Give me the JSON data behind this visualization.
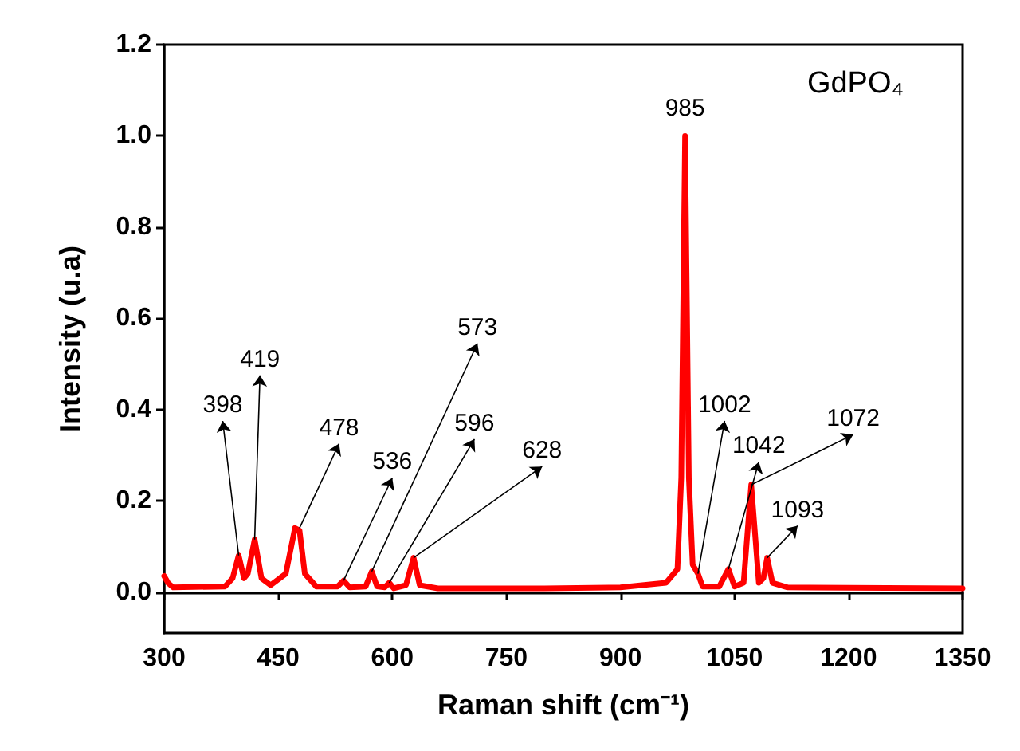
{
  "chart_data": {
    "type": "line",
    "title": "GdPO₄",
    "xlabel": "Raman shift (cm⁻¹)",
    "ylabel": "Intensity (u.a)",
    "x": [
      300,
      305,
      312,
      380,
      390,
      398,
      405,
      410,
      419,
      428,
      440,
      460,
      472,
      478,
      485,
      500,
      528,
      536,
      544,
      565,
      573,
      580,
      590,
      596,
      602,
      618,
      628,
      636,
      660,
      800,
      900,
      960,
      975,
      980,
      983,
      985,
      987,
      990,
      995,
      1002,
      1008,
      1030,
      1042,
      1050,
      1062,
      1068,
      1072,
      1076,
      1082,
      1088,
      1093,
      1100,
      1120,
      1350
    ],
    "series": [
      {
        "color": "#ff0000",
        "values": [
          0.035,
          0.02,
          0.01,
          0.012,
          0.03,
          0.08,
          0.03,
          0.04,
          0.115,
          0.03,
          0.015,
          0.04,
          0.14,
          0.135,
          0.04,
          0.012,
          0.012,
          0.025,
          0.01,
          0.012,
          0.045,
          0.012,
          0.01,
          0.02,
          0.008,
          0.015,
          0.075,
          0.015,
          0.008,
          0.008,
          0.01,
          0.02,
          0.05,
          0.25,
          0.7,
          1.0,
          0.7,
          0.25,
          0.06,
          0.04,
          0.012,
          0.012,
          0.05,
          0.012,
          0.02,
          0.15,
          0.235,
          0.15,
          0.02,
          0.03,
          0.075,
          0.02,
          0.01,
          0.008
        ]
      }
    ],
    "annotations": [
      {
        "text": "398",
        "x": 398,
        "y": 0.08
      },
      {
        "text": "419",
        "x": 419,
        "y": 0.115
      },
      {
        "text": "478",
        "x": 478,
        "y": 0.14
      },
      {
        "text": "536",
        "x": 536,
        "y": 0.025
      },
      {
        "text": "573",
        "x": 573,
        "y": 0.045
      },
      {
        "text": "596",
        "x": 596,
        "y": 0.02
      },
      {
        "text": "628",
        "x": 628,
        "y": 0.075
      },
      {
        "text": "985",
        "x": 985,
        "y": 1.0
      },
      {
        "text": "1002",
        "x": 1002,
        "y": 0.04
      },
      {
        "text": "1042",
        "x": 1042,
        "y": 0.05
      },
      {
        "text": "1072",
        "x": 1072,
        "y": 0.235
      },
      {
        "text": "1093",
        "x": 1093,
        "y": 0.075
      }
    ],
    "xlim": [
      300,
      1350
    ],
    "xticks": [
      300,
      450,
      600,
      750,
      900,
      1050,
      1200,
      1350
    ],
    "ylim": [
      -0.09,
      1.2
    ],
    "yticks": [
      {
        "value": 0,
        "label": "0.0"
      },
      {
        "value": 0.2,
        "label": "0.2"
      },
      {
        "value": 0.4,
        "label": "0.4"
      },
      {
        "value": 0.6,
        "label": "0.6"
      },
      {
        "value": 0.8,
        "label": "0.8"
      },
      {
        "value": 1,
        "label": "1.0"
      },
      {
        "value": 1.2,
        "label": "1.2"
      }
    ],
    "marker": "none",
    "line_style": "solid"
  }
}
